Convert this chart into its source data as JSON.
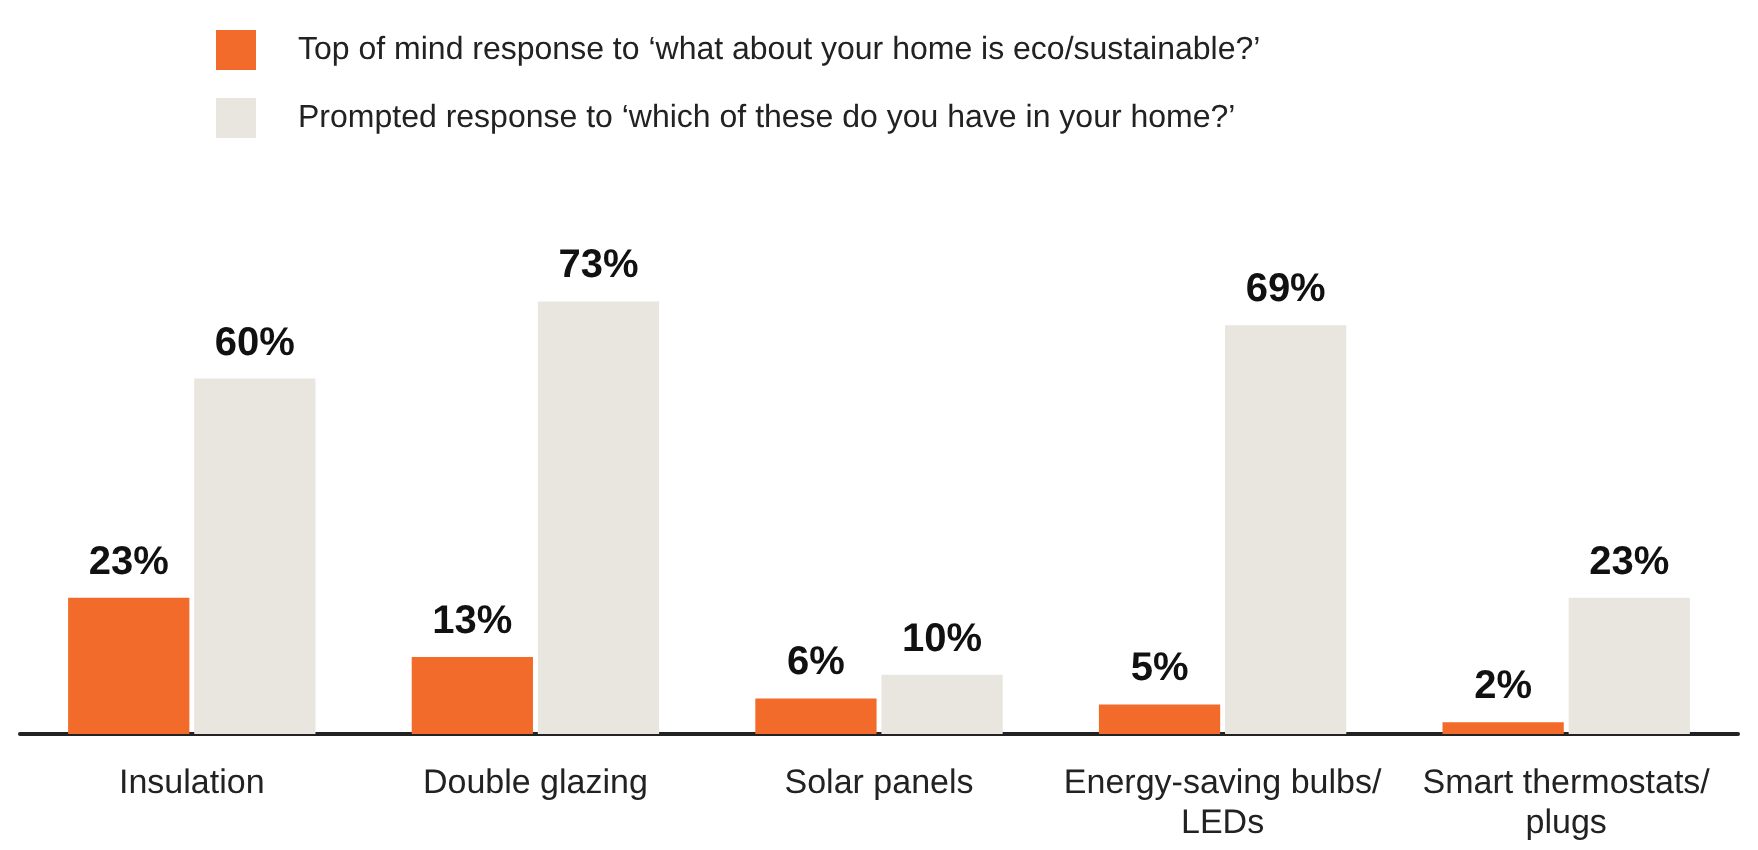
{
  "chart_data": {
    "type": "bar",
    "categories": [
      "Insulation",
      "Double glazing",
      "Solar panels",
      "Energy-saving bulbs/LEDs",
      "Smart thermostats/plugs"
    ],
    "series": [
      {
        "name": "Top of mind response to ‘what about your home is eco/sustainable?’",
        "color": "#f26b2a",
        "values": [
          23,
          13,
          6,
          5,
          2
        ],
        "value_labels": [
          "23%",
          "13%",
          "6%",
          "5%",
          "2%"
        ]
      },
      {
        "name": "Prompted response to ‘which of these do you have in your home?’",
        "color": "#e8e6df",
        "values": [
          60,
          73,
          10,
          69,
          23
        ],
        "value_labels": [
          "60%",
          "73%",
          "10%",
          "69%",
          "23%"
        ]
      }
    ],
    "legend": "top left"
  }
}
